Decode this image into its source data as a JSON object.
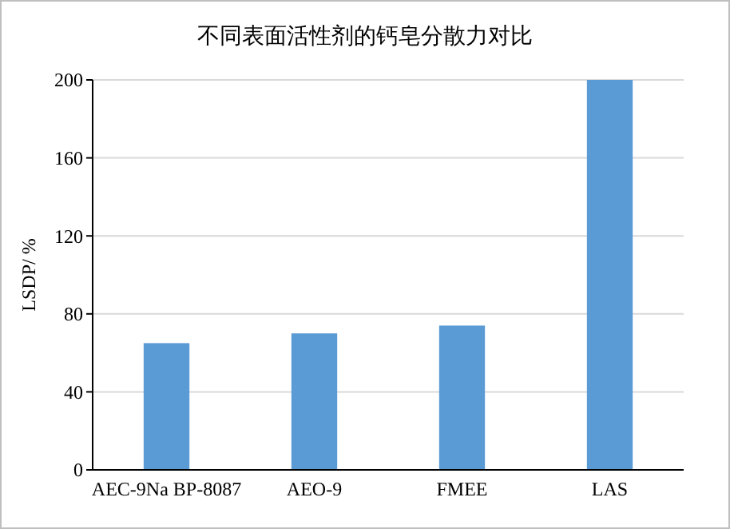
{
  "chart_data": {
    "type": "bar",
    "title": "不同表面活性剂的钙皂分散力对比",
    "ylabel": "LSDP/ %",
    "categories": [
      "AEC-9Na BP-8087",
      "AEO-9",
      "FMEE",
      "LAS"
    ],
    "values": [
      65,
      70,
      74,
      200
    ],
    "color": "#5b9bd5",
    "ylim": [
      0,
      200
    ],
    "yticks": [
      0,
      40,
      80,
      120,
      160,
      200
    ],
    "grid": "y"
  }
}
